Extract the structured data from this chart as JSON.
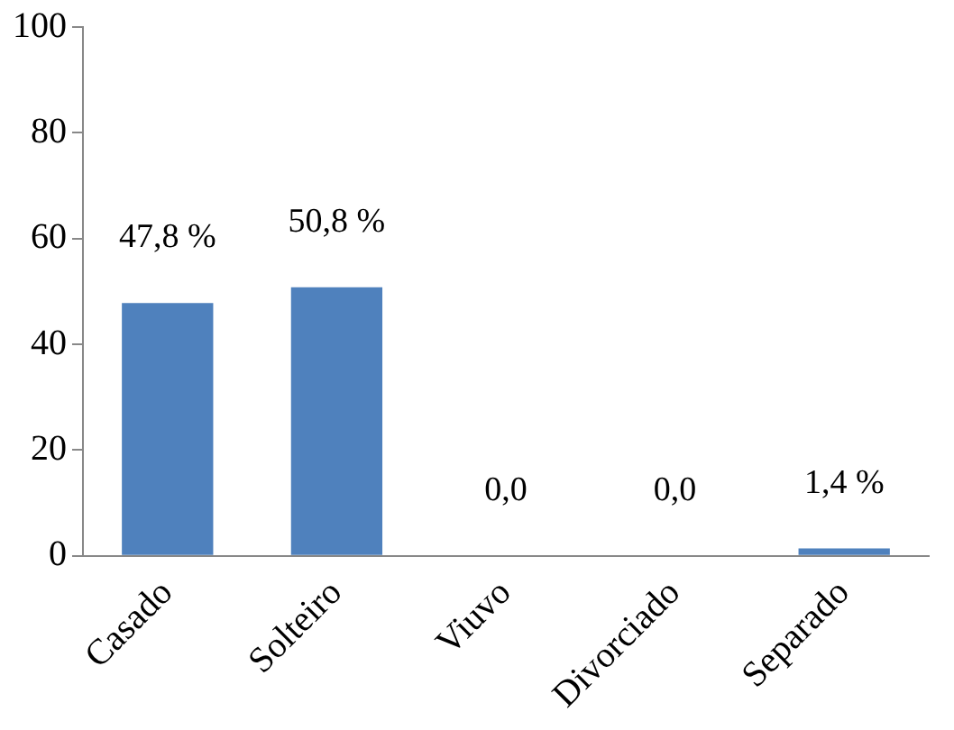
{
  "chart_data": {
    "type": "bar",
    "categories": [
      "Casado",
      "Solteiro",
      "Viuvo",
      "Divorciado",
      "Separado"
    ],
    "values": [
      47.8,
      50.8,
      0,
      0,
      1.4
    ],
    "value_labels": [
      "47,8 %",
      "50,8 %",
      "0,0",
      "0,0",
      "1,4 %"
    ],
    "color": "#4f81bd",
    "ylim": [
      0,
      100
    ],
    "yticks": [
      0,
      20,
      40,
      60,
      80,
      100
    ],
    "grid": false,
    "legend": false
  }
}
